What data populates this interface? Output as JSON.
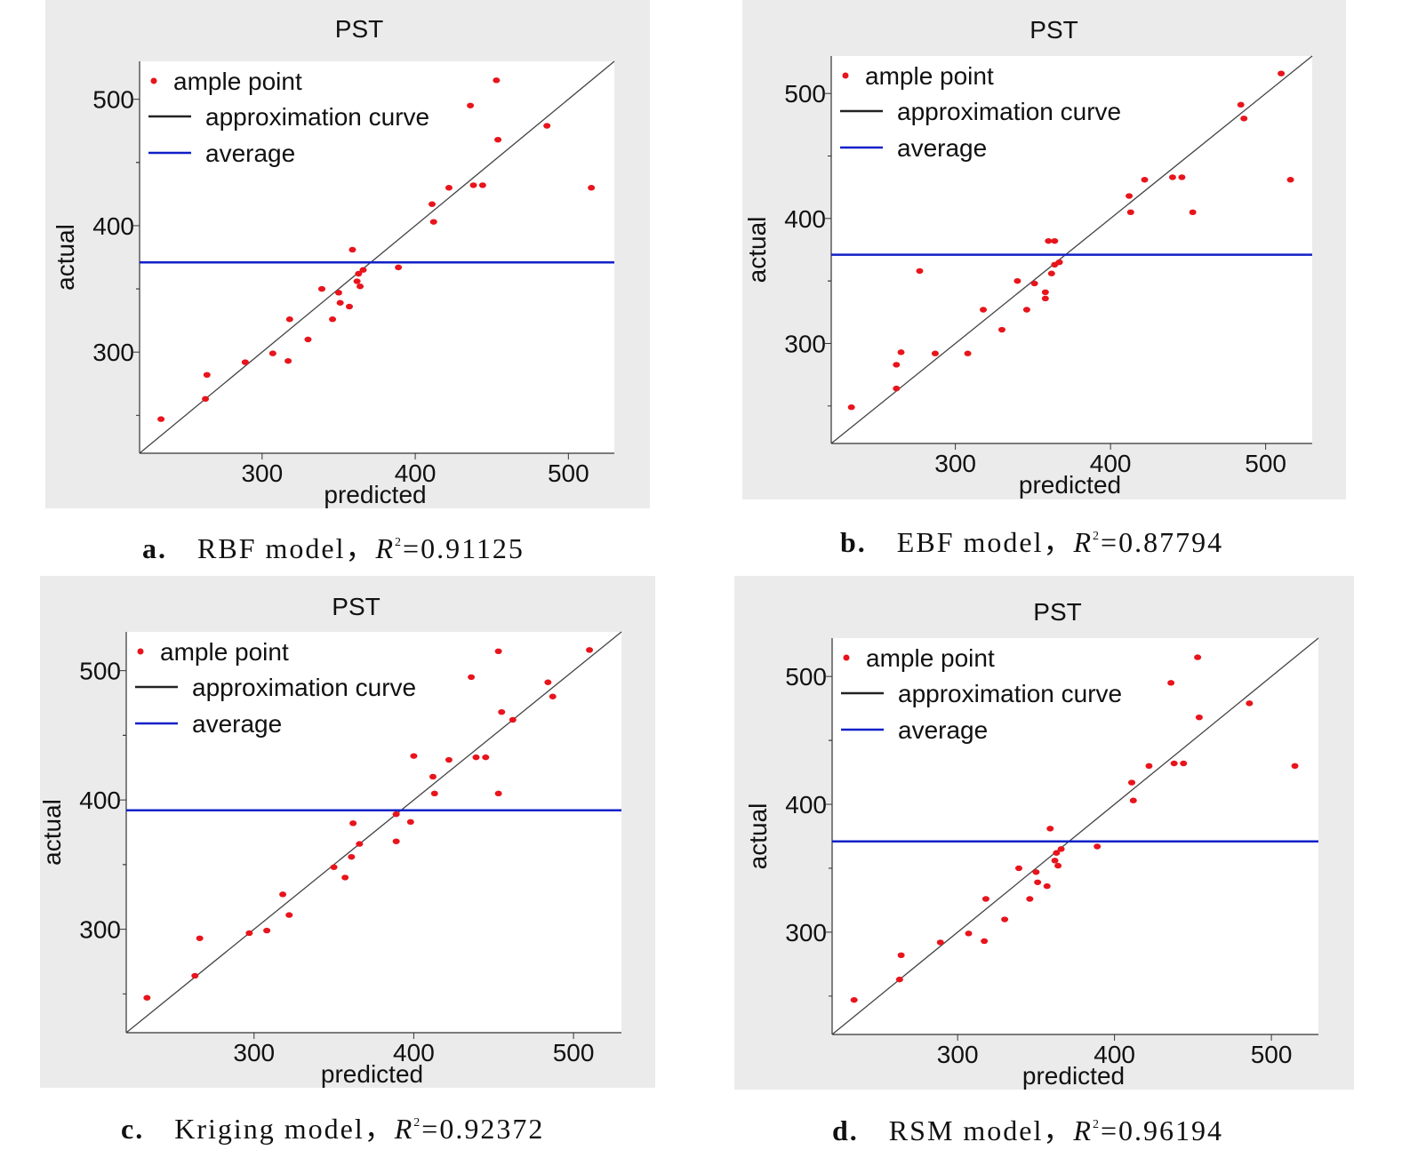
{
  "colors": {
    "points": "#e8141c",
    "curve": "#444444",
    "average": "#1020c8",
    "panel_bg": "#ebebeb",
    "plot_bg": "#ffffff"
  },
  "chart_data": [
    {
      "type": "scatter",
      "title": "PST",
      "xlabel": "predicted",
      "ylabel": "actual",
      "xlim": [
        220,
        530
      ],
      "ylim": [
        220,
        530
      ],
      "xticks": [
        300,
        400,
        500
      ],
      "yticks": [
        300,
        400,
        500
      ],
      "legend": [
        "ample point",
        "approximation curve",
        "average"
      ],
      "legend_position": "top-left",
      "average": 371,
      "caption": {
        "letter": "a.",
        "model": "RBF model，",
        "r": "R",
        "sup": "2",
        "value": "=0.91125"
      },
      "points": [
        [
          234,
          247
        ],
        [
          263,
          263
        ],
        [
          264,
          282
        ],
        [
          289,
          292
        ],
        [
          307,
          299
        ],
        [
          317,
          293
        ],
        [
          318,
          326
        ],
        [
          330,
          310
        ],
        [
          339,
          350
        ],
        [
          346,
          326
        ],
        [
          350,
          347
        ],
        [
          351,
          339
        ],
        [
          357,
          336
        ],
        [
          359,
          381
        ],
        [
          362,
          356
        ],
        [
          363,
          362
        ],
        [
          364,
          352
        ],
        [
          366,
          365
        ],
        [
          389,
          367
        ],
        [
          411,
          417
        ],
        [
          412,
          403
        ],
        [
          422,
          430
        ],
        [
          436,
          495
        ],
        [
          438,
          432
        ],
        [
          444,
          432
        ],
        [
          453,
          515
        ],
        [
          454,
          468
        ],
        [
          486,
          479
        ],
        [
          515,
          430
        ]
      ]
    },
    {
      "type": "scatter",
      "title": "PST",
      "xlabel": "predicted",
      "ylabel": "actual",
      "xlim": [
        220,
        530
      ],
      "ylim": [
        220,
        530
      ],
      "xticks": [
        300,
        400,
        500
      ],
      "yticks": [
        300,
        400,
        500
      ],
      "legend": [
        "ample point",
        "approximation curve",
        "average"
      ],
      "legend_position": "top-left",
      "average": 371,
      "caption": {
        "letter": "b.",
        "model": "EBF model，",
        "r": "R",
        "sup": "2",
        "value": "=0.87794"
      },
      "points": [
        [
          233,
          249
        ],
        [
          262,
          264
        ],
        [
          262,
          283
        ],
        [
          265,
          293
        ],
        [
          277,
          358
        ],
        [
          287,
          292
        ],
        [
          308,
          292
        ],
        [
          318,
          327
        ],
        [
          330,
          311
        ],
        [
          340,
          350
        ],
        [
          346,
          327
        ],
        [
          351,
          348
        ],
        [
          358,
          336
        ],
        [
          358,
          341
        ],
        [
          360,
          382
        ],
        [
          362,
          356
        ],
        [
          364,
          382
        ],
        [
          364,
          363
        ],
        [
          367,
          365
        ],
        [
          412,
          418
        ],
        [
          413,
          405
        ],
        [
          422,
          431
        ],
        [
          440,
          433
        ],
        [
          446,
          433
        ],
        [
          453,
          405
        ],
        [
          484,
          491
        ],
        [
          486,
          480
        ],
        [
          510,
          516
        ],
        [
          516,
          431
        ]
      ]
    },
    {
      "type": "scatter",
      "title": "PST",
      "xlabel": "predicted",
      "ylabel": "actual",
      "xlim": [
        220,
        530
      ],
      "ylim": [
        220,
        530
      ],
      "xticks": [
        300,
        400,
        500
      ],
      "yticks": [
        300,
        400,
        500
      ],
      "legend": [
        "ample point",
        "approximation curve",
        "average"
      ],
      "legend_position": "top-left",
      "average": 392,
      "caption": {
        "letter": "c.",
        "model": "Kriging model，",
        "r": "R",
        "sup": "2",
        "value": "=0.92372"
      },
      "points": [
        [
          233,
          247
        ],
        [
          263,
          264
        ],
        [
          266,
          293
        ],
        [
          297,
          297
        ],
        [
          308,
          299
        ],
        [
          318,
          327
        ],
        [
          322,
          311
        ],
        [
          350,
          348
        ],
        [
          357,
          340
        ],
        [
          361,
          356
        ],
        [
          362,
          382
        ],
        [
          366,
          366
        ],
        [
          389,
          389
        ],
        [
          389,
          368
        ],
        [
          398,
          383
        ],
        [
          400,
          434
        ],
        [
          412,
          418
        ],
        [
          413,
          405
        ],
        [
          422,
          431
        ],
        [
          436,
          495
        ],
        [
          439,
          433
        ],
        [
          445,
          433
        ],
        [
          453,
          515
        ],
        [
          453,
          405
        ],
        [
          455,
          468
        ],
        [
          462,
          462
        ],
        [
          484,
          491
        ],
        [
          487,
          480
        ],
        [
          510,
          516
        ]
      ]
    },
    {
      "type": "scatter",
      "title": "PST",
      "xlabel": "predicted",
      "ylabel": "actual",
      "xlim": [
        220,
        530
      ],
      "ylim": [
        220,
        530
      ],
      "xticks": [
        300,
        400,
        500
      ],
      "yticks": [
        300,
        400,
        500
      ],
      "legend": [
        "ample point",
        "approximation curve",
        "average"
      ],
      "legend_position": "top-left",
      "average": 371,
      "caption": {
        "letter": "d.",
        "model": "RSM model，",
        "r": "R",
        "sup": "2",
        "value": "=0.96194"
      },
      "points": [
        [
          234,
          247
        ],
        [
          263,
          263
        ],
        [
          264,
          282
        ],
        [
          289,
          292
        ],
        [
          307,
          299
        ],
        [
          317,
          293
        ],
        [
          318,
          326
        ],
        [
          330,
          310
        ],
        [
          339,
          350
        ],
        [
          346,
          326
        ],
        [
          350,
          347
        ],
        [
          351,
          339
        ],
        [
          357,
          336
        ],
        [
          359,
          381
        ],
        [
          362,
          356
        ],
        [
          363,
          362
        ],
        [
          364,
          352
        ],
        [
          366,
          365
        ],
        [
          389,
          367
        ],
        [
          411,
          417
        ],
        [
          412,
          403
        ],
        [
          422,
          430
        ],
        [
          436,
          495
        ],
        [
          438,
          432
        ],
        [
          444,
          432
        ],
        [
          453,
          515
        ],
        [
          454,
          468
        ],
        [
          486,
          479
        ],
        [
          515,
          430
        ]
      ]
    }
  ]
}
